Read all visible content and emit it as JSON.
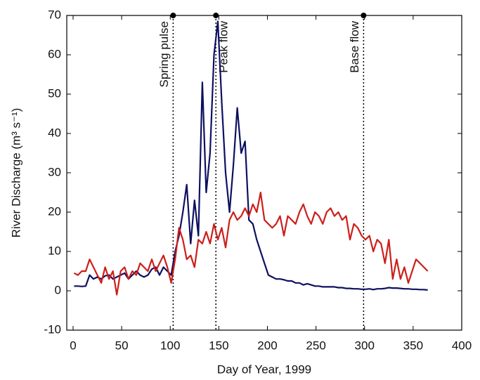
{
  "chart_data": {
    "type": "line",
    "xlabel": "Day of Year, 1999",
    "ylabel": "River Discharge (m³ s⁻¹)",
    "xlim": [
      -6.5,
      400
    ],
    "ylim": [
      -10,
      70
    ],
    "xticks": [
      0,
      50,
      100,
      150,
      200,
      250,
      300,
      350,
      400
    ],
    "yticks": [
      -10,
      0,
      10,
      20,
      30,
      40,
      50,
      60,
      70
    ],
    "x": [
      1,
      5,
      9,
      13,
      17,
      21,
      25,
      29,
      33,
      37,
      41,
      45,
      49,
      53,
      57,
      61,
      65,
      69,
      73,
      77,
      81,
      85,
      89,
      93,
      97,
      101,
      105,
      109,
      113,
      117,
      121,
      125,
      129,
      133,
      137,
      141,
      145,
      149,
      153,
      157,
      161,
      165,
      169,
      173,
      177,
      181,
      185,
      189,
      193,
      197,
      201,
      205,
      209,
      213,
      217,
      221,
      225,
      229,
      233,
      237,
      241,
      245,
      249,
      253,
      257,
      261,
      265,
      269,
      273,
      277,
      281,
      285,
      289,
      293,
      297,
      301,
      305,
      309,
      313,
      317,
      321,
      325,
      329,
      333,
      337,
      341,
      345,
      349,
      353,
      357,
      361,
      365
    ],
    "series": [
      {
        "color": "#0d1060",
        "values": [
          1.2,
          1.2,
          1.1,
          1.2,
          4,
          3,
          3.5,
          3,
          3.8,
          4,
          3,
          3.5,
          4,
          4.5,
          3,
          4,
          5,
          4,
          3.5,
          4,
          5.5,
          6,
          4,
          6,
          5,
          4,
          10,
          14,
          20,
          27,
          12,
          23,
          14,
          53,
          25,
          35,
          60,
          68.5,
          48,
          30,
          20,
          32,
          46.5,
          35,
          38,
          18,
          17,
          13,
          10,
          7,
          4,
          3.5,
          3,
          3,
          2.8,
          2.5,
          2.5,
          2,
          2,
          1.5,
          1.8,
          1.5,
          1.2,
          1.2,
          1,
          1,
          1,
          1,
          0.8,
          0.8,
          0.6,
          0.6,
          0.5,
          0.5,
          0.4,
          0.4,
          0.5,
          0.3,
          0.5,
          0.5,
          0.6,
          0.8,
          0.7,
          0.7,
          0.6,
          0.5,
          0.5,
          0.4,
          0.4,
          0.3,
          0.3,
          0.2
        ]
      },
      {
        "color": "#cc1f1a",
        "values": [
          4.5,
          4,
          5,
          5,
          8,
          6,
          4,
          2,
          6,
          3,
          5,
          -1,
          5,
          6,
          3,
          5,
          4,
          7,
          6,
          5,
          8,
          5,
          7,
          9,
          6,
          2,
          8,
          16,
          13,
          8,
          9,
          6,
          13,
          12,
          15,
          12,
          17,
          13,
          16,
          11,
          18,
          20,
          18,
          19,
          21,
          19,
          22,
          20,
          25,
          18,
          17,
          16,
          17,
          19,
          14,
          19,
          18,
          17,
          20,
          22,
          19,
          17,
          20,
          19,
          17,
          20,
          21,
          19,
          20,
          18,
          19,
          13,
          17,
          16,
          14,
          13,
          14,
          10,
          13,
          12,
          7,
          13,
          3,
          8,
          3,
          6,
          2,
          5,
          8,
          7,
          6,
          5
        ]
      }
    ],
    "annotations": [
      {
        "x": 103,
        "label": "Spring pulse"
      },
      {
        "x": 147,
        "label": "Peak flow"
      },
      {
        "x": 299,
        "label": "Base flow"
      }
    ]
  }
}
